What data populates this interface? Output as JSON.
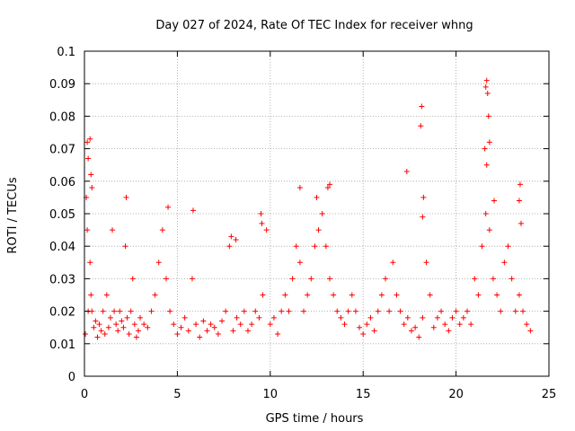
{
  "chart_data": {
    "type": "scatter",
    "title": "Day 027 of 2024, Rate Of TEC Index for receiver whng",
    "xlabel": "GPS time / hours",
    "ylabel": "ROTI / TECUs",
    "xlim": [
      0,
      25
    ],
    "ylim": [
      0,
      0.1
    ],
    "xticks": [
      0,
      5,
      10,
      15,
      20,
      25
    ],
    "xtick_labels": [
      "0",
      "5",
      "10",
      "15",
      "20",
      "25"
    ],
    "yticks": [
      0,
      0.01,
      0.02,
      0.03,
      0.04,
      0.05,
      0.06,
      0.07,
      0.08,
      0.09,
      0.1
    ],
    "ytick_labels": [
      "0",
      "0.01",
      "0.02",
      "0.03",
      "0.04",
      "0.05",
      "0.06",
      "0.07",
      "0.08",
      "0.09",
      "0.1"
    ],
    "grid": true,
    "marker": "+",
    "color": "#ff0000",
    "series": [
      {
        "name": "ROTI",
        "x": [
          0.05,
          0.1,
          0.15,
          0.2,
          0.3,
          0.35,
          0.4,
          0.5,
          0.6,
          0.7,
          0.8,
          0.9,
          1.0,
          1.1,
          1.2,
          1.3,
          1.4,
          1.5,
          1.6,
          1.7,
          1.8,
          1.9,
          2.0,
          2.1,
          2.2,
          2.3,
          2.4,
          2.5,
          2.6,
          2.7,
          2.8,
          2.9,
          3.0,
          3.2,
          3.4,
          3.6,
          3.8,
          4.0,
          4.2,
          4.4,
          4.6,
          4.8,
          5.0,
          5.2,
          5.4,
          5.6,
          5.8,
          6.0,
          6.2,
          6.4,
          6.6,
          6.8,
          7.0,
          7.2,
          7.4,
          7.6,
          7.8,
          8.0,
          8.2,
          8.4,
          8.6,
          8.8,
          9.0,
          9.2,
          9.4,
          9.6,
          9.8,
          10.0,
          10.2,
          10.4,
          10.6,
          10.8,
          11.0,
          11.2,
          11.4,
          11.6,
          11.8,
          12.0,
          12.2,
          12.4,
          12.6,
          12.8,
          13.0,
          13.2,
          13.4,
          13.6,
          13.8,
          14.0,
          14.2,
          14.4,
          14.6,
          14.8,
          15.0,
          15.2,
          15.4,
          15.6,
          15.8,
          16.0,
          16.2,
          16.4,
          16.6,
          16.8,
          17.0,
          17.2,
          17.4,
          17.6,
          17.8,
          18.0,
          18.2,
          18.4,
          18.6,
          18.8,
          19.0,
          19.2,
          19.4,
          19.6,
          19.8,
          20.0,
          20.2,
          20.4,
          20.6,
          20.8,
          21.0,
          21.2,
          21.4,
          21.6,
          21.8,
          22.0,
          22.2,
          22.4,
          22.6,
          22.8,
          23.0,
          23.2,
          23.4,
          23.6,
          23.8,
          24.0,
          0.15,
          0.2,
          0.3,
          0.35,
          0.4,
          2.25,
          4.5,
          5.85,
          7.9,
          8.15,
          9.5,
          9.55,
          11.6,
          12.5,
          13.1,
          13.2,
          17.35,
          18.1,
          18.15,
          18.2,
          18.25,
          21.6,
          21.65,
          21.7,
          21.75,
          21.8,
          21.65,
          22.05,
          23.4,
          23.45,
          23.5,
          21.55
        ],
        "y": [
          0.013,
          0.055,
          0.045,
          0.02,
          0.035,
          0.025,
          0.02,
          0.015,
          0.017,
          0.012,
          0.016,
          0.014,
          0.02,
          0.013,
          0.025,
          0.015,
          0.018,
          0.045,
          0.02,
          0.016,
          0.014,
          0.02,
          0.017,
          0.015,
          0.04,
          0.018,
          0.013,
          0.02,
          0.03,
          0.016,
          0.012,
          0.014,
          0.018,
          0.016,
          0.015,
          0.02,
          0.025,
          0.035,
          0.045,
          0.03,
          0.02,
          0.016,
          0.013,
          0.015,
          0.018,
          0.014,
          0.03,
          0.016,
          0.012,
          0.017,
          0.014,
          0.016,
          0.015,
          0.013,
          0.017,
          0.02,
          0.04,
          0.014,
          0.018,
          0.016,
          0.02,
          0.014,
          0.016,
          0.02,
          0.018,
          0.025,
          0.045,
          0.016,
          0.018,
          0.013,
          0.02,
          0.025,
          0.02,
          0.03,
          0.04,
          0.035,
          0.02,
          0.025,
          0.03,
          0.04,
          0.045,
          0.05,
          0.04,
          0.03,
          0.025,
          0.02,
          0.018,
          0.016,
          0.02,
          0.025,
          0.02,
          0.015,
          0.013,
          0.016,
          0.018,
          0.014,
          0.02,
          0.025,
          0.03,
          0.02,
          0.035,
          0.025,
          0.02,
          0.016,
          0.018,
          0.014,
          0.015,
          0.012,
          0.018,
          0.035,
          0.025,
          0.015,
          0.018,
          0.02,
          0.016,
          0.014,
          0.018,
          0.02,
          0.016,
          0.018,
          0.02,
          0.016,
          0.03,
          0.025,
          0.04,
          0.05,
          0.045,
          0.03,
          0.025,
          0.02,
          0.035,
          0.04,
          0.03,
          0.02,
          0.025,
          0.02,
          0.016,
          0.014,
          0.072,
          0.067,
          0.073,
          0.062,
          0.058,
          0.055,
          0.052,
          0.051,
          0.043,
          0.042,
          0.05,
          0.047,
          0.058,
          0.055,
          0.058,
          0.059,
          0.063,
          0.077,
          0.083,
          0.049,
          0.055,
          0.089,
          0.091,
          0.087,
          0.08,
          0.072,
          0.065,
          0.054,
          0.054,
          0.059,
          0.047,
          0.07
        ]
      }
    ]
  }
}
